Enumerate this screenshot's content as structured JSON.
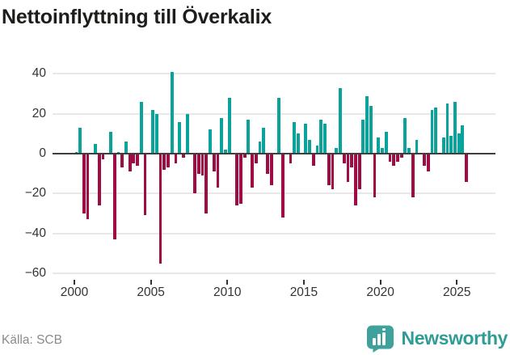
{
  "title": "Nettoinflyttning till Överkalix",
  "source": "Källa: SCB",
  "brand": {
    "name": "Newsworthy",
    "color": "#3ea19b"
  },
  "colors": {
    "positive_bar": "#0aa39c",
    "negative_bar": "#9e0c43",
    "zero_line": "#3f3f3f",
    "gridline": "#e8e8e8",
    "axis_text": "#333333",
    "source_text": "#8a8a8a"
  },
  "chart_data": {
    "type": "bar",
    "title": "Nettoinflyttning till Överkalix",
    "xlabel": "",
    "ylabel": "",
    "x_freq": "quarterly",
    "x_start": "2000-Q1",
    "x_tick_labels": [
      "2000",
      "2005",
      "2010",
      "2015",
      "2020",
      "2025"
    ],
    "y_ticks": [
      40,
      20,
      0,
      -20,
      -40,
      -60
    ],
    "ylim": [
      -62,
      44
    ],
    "grid": true,
    "legend": "none",
    "series": [
      {
        "name": "Nettoinflyttning",
        "values": [
          1,
          13,
          -30,
          -33,
          0,
          5,
          -26,
          -3,
          0,
          11,
          -43,
          1,
          -7,
          6,
          -9,
          -5,
          -6,
          26,
          -31,
          0,
          22,
          20,
          -55,
          -8,
          -7,
          41,
          -5,
          16,
          -2,
          20,
          0,
          -20,
          -10,
          -11,
          -30,
          12,
          -9,
          -17,
          18,
          2,
          28,
          0,
          -26,
          -25,
          -2,
          17,
          -17,
          -5,
          6,
          13,
          -10,
          -16,
          0,
          28,
          -32,
          0,
          -5,
          16,
          10,
          0,
          15,
          7,
          -6,
          4,
          17,
          15,
          -16,
          -18,
          3,
          33,
          -5,
          -14,
          -7,
          -26,
          -18,
          17,
          29,
          24,
          -22,
          8,
          3,
          11,
          -4,
          -6,
          -4,
          -2,
          18,
          3,
          -22,
          7,
          0,
          -6,
          -9,
          22,
          23,
          0,
          8,
          25,
          9,
          26,
          10,
          14,
          -14
        ]
      }
    ]
  }
}
